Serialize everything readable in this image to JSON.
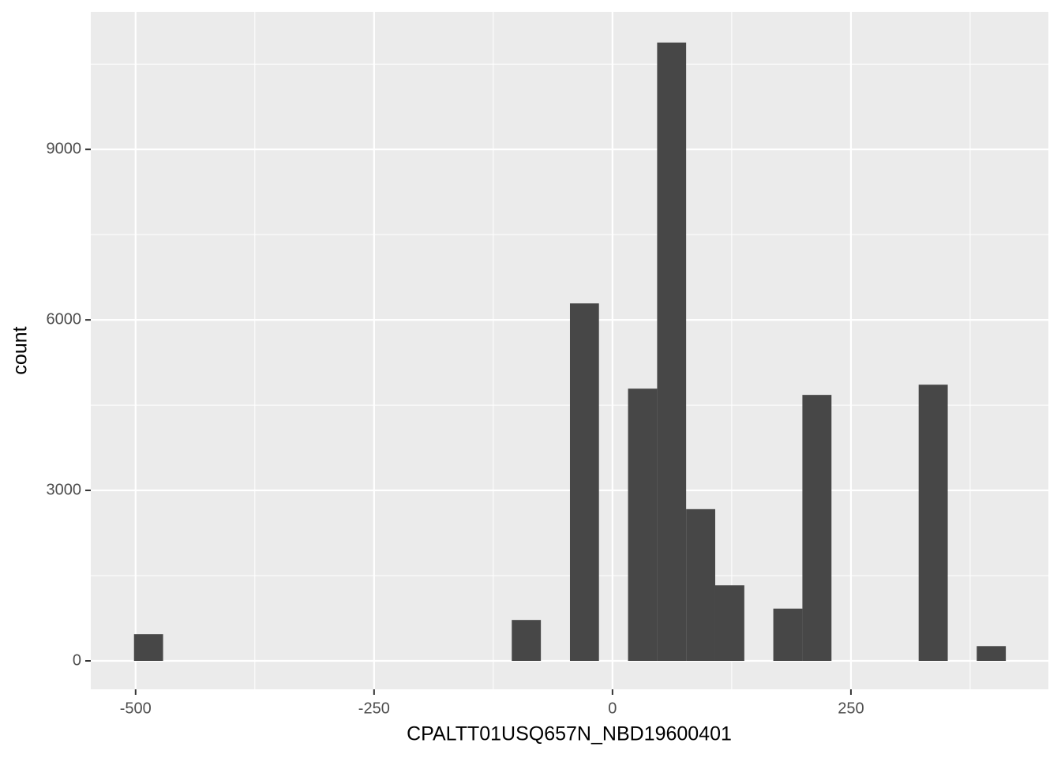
{
  "chart_data": {
    "type": "histogram",
    "x_label": "CPALTT01USQ657N_NBD19600401",
    "y_label": "count",
    "bins": [
      -501.7,
      -471.2,
      -440.8,
      -410.3,
      -379.8,
      -349.3,
      -318.9,
      -288.4,
      -257.9,
      -227.5,
      -197.0,
      -166.5,
      -136.1,
      -105.6,
      -75.1,
      -44.6,
      -14.2,
      16.3,
      46.8,
      77.2,
      107.7,
      138.2,
      168.6,
      199.1,
      229.6,
      260.0,
      290.5,
      321.0,
      351.5,
      381.9,
      412.4
    ],
    "counts": [
      470,
      0,
      0,
      0,
      0,
      0,
      0,
      0,
      0,
      0,
      0,
      0,
      0,
      720,
      0,
      6290,
      0,
      4790,
      10880,
      2670,
      1330,
      0,
      920,
      4680,
      0,
      0,
      0,
      4860,
      0,
      260
    ],
    "color": "#474747",
    "xlim": [
      -547,
      457
    ],
    "ylim": [
      -500,
      11420
    ],
    "xticks": [
      -500,
      -250,
      0,
      250
    ],
    "yticks": [
      0,
      3000,
      6000,
      9000
    ],
    "x_minor_grid": [
      -375,
      -125,
      125,
      375
    ],
    "y_minor_grid": [
      1500,
      4500,
      7500,
      10500
    ],
    "grid": true,
    "panel_color": "#ebebeb"
  }
}
